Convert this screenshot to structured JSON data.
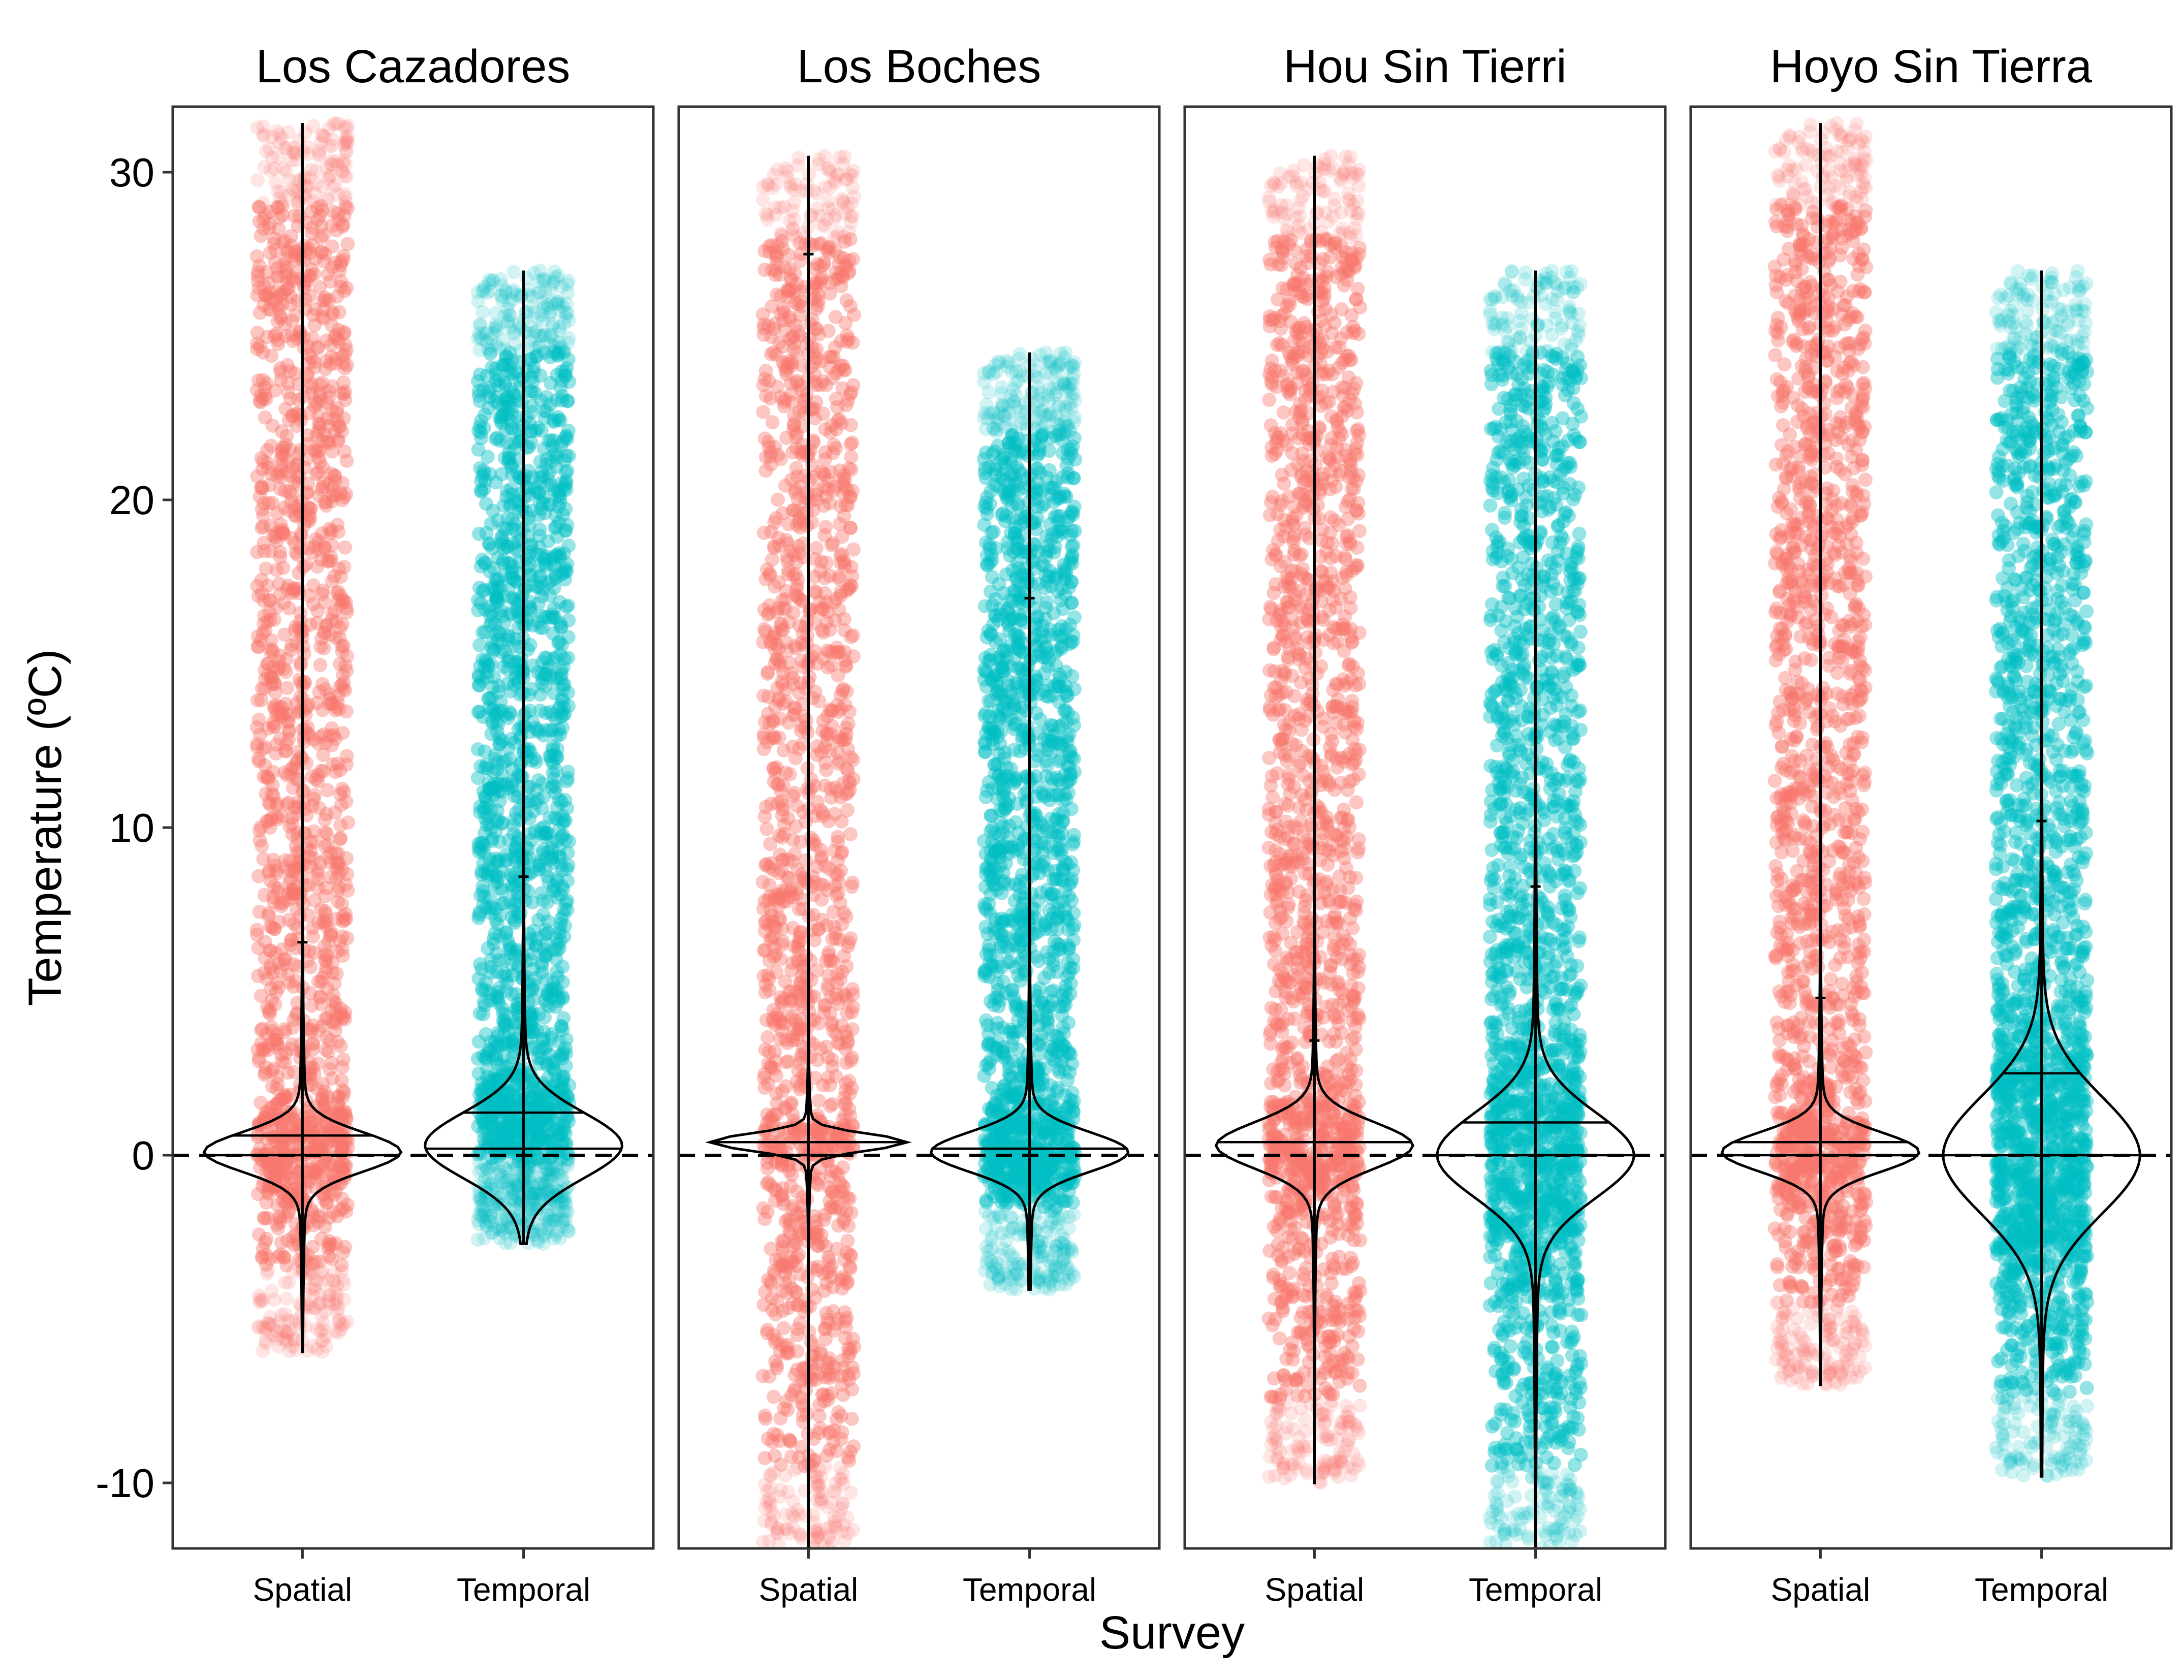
{
  "chart_data": {
    "type": "violin",
    "title": "",
    "xlabel": "Survey",
    "ylabel": "Temperature (ºC)",
    "ylim": [
      -12,
      32
    ],
    "yticks": [
      -10,
      0,
      10,
      20,
      30
    ],
    "reference_line": {
      "y": 0,
      "style": "dashed"
    },
    "grid": false,
    "categories": [
      "Spatial",
      "Temporal"
    ],
    "colors": {
      "Spatial": "#F8766D",
      "Temporal": "#00BFC4"
    },
    "panels": [
      {
        "name": "Los Cazadores",
        "groups": [
          {
            "category": "Spatial",
            "min": -6,
            "max": 31.5,
            "median": 0,
            "q3": 0.6,
            "upper_hinge": 6.5,
            "mode": 0.1,
            "spread": 0.6,
            "tail": 0.9
          },
          {
            "category": "Temporal",
            "min": -2.7,
            "max": 27,
            "median": 0.2,
            "q3": 1.3,
            "upper_hinge": 8.5,
            "mode": 0.3,
            "spread": 1.0,
            "tail": 1.1
          }
        ]
      },
      {
        "name": "Los Boches",
        "groups": [
          {
            "category": "Spatial",
            "min": -12,
            "max": 30.5,
            "median": 0,
            "q3": 0.4,
            "upper_hinge": 27.5,
            "mode": 0.4,
            "spread": 0.25,
            "tail": 0.4
          },
          {
            "category": "Temporal",
            "min": -4.1,
            "max": 24.5,
            "median": 0.2,
            "q3": 0.2,
            "upper_hinge": 17,
            "mode": 0.1,
            "spread": 0.6,
            "tail": 0.9
          }
        ]
      },
      {
        "name": "Hou Sin Tierri",
        "groups": [
          {
            "category": "Spatial",
            "min": -10,
            "max": 30.5,
            "median": 0.4,
            "q3": 0.4,
            "upper_hinge": 3.5,
            "mode": 0.3,
            "spread": 0.7,
            "tail": 0.9
          },
          {
            "category": "Temporal",
            "min": -12,
            "max": 27,
            "median": 0,
            "q3": 1.0,
            "upper_hinge": 8.2,
            "mode": 0,
            "spread": 1.3,
            "tail": 1.6
          }
        ]
      },
      {
        "name": "Hoyo Sin Tierra",
        "groups": [
          {
            "category": "Spatial",
            "min": -7,
            "max": 31.5,
            "median": 0,
            "q3": 0.4,
            "upper_hinge": 4.8,
            "mode": 0.1,
            "spread": 0.6,
            "tail": 0.9
          },
          {
            "category": "Temporal",
            "min": -9.8,
            "max": 27,
            "median": 0,
            "q3": 2.5,
            "upper_hinge": 10.2,
            "mode": 0,
            "spread": 1.8,
            "tail": 1.7
          }
        ]
      }
    ]
  }
}
